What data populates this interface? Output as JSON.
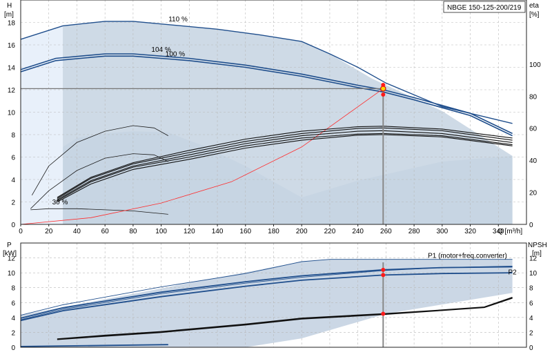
{
  "chart_data": {
    "type": "line",
    "title": "NBGE 150-125-200/219",
    "x": {
      "label": "Q [m³/h]",
      "range": [
        0,
        360
      ],
      "ticks": [
        0,
        20,
        40,
        60,
        80,
        100,
        120,
        140,
        160,
        180,
        200,
        220,
        240,
        260,
        280,
        300,
        320,
        340
      ]
    },
    "duty_point": {
      "Q": 258,
      "H": 12.1,
      "eta": [
        87,
        81
      ],
      "P": [
        10.4,
        9.7
      ],
      "NPSH": 4.5
    },
    "top": {
      "y_left": {
        "label": "H",
        "unit": "[m]",
        "range": [
          0,
          20
        ],
        "ticks": [
          0,
          2,
          4,
          6,
          8,
          10,
          12,
          14,
          16,
          18
        ]
      },
      "y_right": {
        "label": "eta",
        "unit": "[%]",
        "range": [
          0,
          140
        ],
        "ticks": [
          0,
          20,
          40,
          60,
          80,
          100
        ]
      },
      "curve_labels": [
        {
          "text": "110 %",
          "Q": 112,
          "H": 18.1
        },
        {
          "text": "104 %",
          "Q": 100,
          "H": 15.4
        },
        {
          "text": "100 %",
          "Q": 110,
          "H": 15.0
        },
        {
          "text": "30 %",
          "Q": 28,
          "H": 1.8
        }
      ],
      "envelope": [
        [
          0,
          16.5
        ],
        [
          30,
          17.7
        ],
        [
          60,
          18.1
        ],
        [
          80,
          18.1
        ],
        [
          140,
          17.4
        ],
        [
          170,
          16.9
        ],
        [
          200,
          16.3
        ],
        [
          220,
          15.2
        ],
        [
          250,
          13.0
        ],
        [
          300,
          10.1
        ],
        [
          350,
          6.1
        ],
        [
          350,
          0
        ],
        [
          0,
          0
        ]
      ],
      "series": [
        {
          "style": "max",
          "points": [
            [
              0,
              16.5
            ],
            [
              30,
              17.7
            ],
            [
              60,
              18.1
            ],
            [
              80,
              18.1
            ],
            [
              140,
              17.4
            ],
            [
              170,
              16.9
            ],
            [
              200,
              16.3
            ],
            [
              220,
              15.2
            ],
            [
              240,
              14.0
            ],
            [
              260,
              12.6
            ],
            [
              300,
              10.5
            ],
            [
              350,
              9.0
            ]
          ]
        },
        {
          "style": "head",
          "points": [
            [
              0,
              13.8
            ],
            [
              25,
              14.8
            ],
            [
              60,
              15.2
            ],
            [
              80,
              15.2
            ],
            [
              120,
              14.8
            ],
            [
              160,
              14.2
            ],
            [
              200,
              13.4
            ],
            [
              240,
              12.4
            ],
            [
              258,
              12.0
            ],
            [
              280,
              11.3
            ],
            [
              320,
              9.9
            ],
            [
              350,
              8.1
            ]
          ]
        },
        {
          "style": "head",
          "points": [
            [
              0,
              13.6
            ],
            [
              25,
              14.6
            ],
            [
              60,
              15.0
            ],
            [
              80,
              15.0
            ],
            [
              120,
              14.6
            ],
            [
              160,
              14.0
            ],
            [
              200,
              13.2
            ],
            [
              240,
              12.2
            ],
            [
              258,
              11.8
            ],
            [
              280,
              11.1
            ],
            [
              320,
              9.7
            ],
            [
              350,
              7.9
            ]
          ]
        },
        {
          "style": "thin",
          "points": [
            [
              7,
              1.3
            ],
            [
              20,
              1.4
            ],
            [
              40,
              1.4
            ],
            [
              60,
              1.3
            ],
            [
              80,
              1.2
            ],
            [
              105,
              0.9
            ]
          ]
        },
        {
          "style": "thin",
          "points": [
            [
              8,
              2.6
            ],
            [
              20,
              5.2
            ],
            [
              40,
              7.3
            ],
            [
              60,
              8.3
            ],
            [
              80,
              8.8
            ],
            [
              95,
              8.6
            ],
            [
              105,
              7.9
            ]
          ]
        },
        {
          "style": "thin",
          "points": [
            [
              7,
              1.4
            ],
            [
              20,
              3.0
            ],
            [
              40,
              4.8
            ],
            [
              60,
              5.9
            ],
            [
              80,
              6.3
            ],
            [
              95,
              6.2
            ],
            [
              105,
              5.6
            ]
          ]
        },
        {
          "style": "thin-red",
          "points": [
            [
              0,
              0
            ],
            [
              50,
              0.6
            ],
            [
              100,
              1.9
            ],
            [
              150,
              3.8
            ],
            [
              200,
              6.9
            ],
            [
              258,
              12.1
            ]
          ]
        }
      ],
      "eta_series": [
        {
          "points": [
            [
              26,
              2.4
            ],
            [
              50,
              4.2
            ],
            [
              80,
              5.5
            ],
            [
              120,
              6.6
            ],
            [
              160,
              7.6
            ],
            [
              200,
              8.3
            ],
            [
              240,
              8.7
            ],
            [
              258,
              8.75
            ],
            [
              300,
              8.5
            ],
            [
              350,
              7.7
            ]
          ]
        },
        {
          "points": [
            [
              26,
              2.3
            ],
            [
              50,
              4.1
            ],
            [
              80,
              5.4
            ],
            [
              120,
              6.4
            ],
            [
              160,
              7.4
            ],
            [
              200,
              8.1
            ],
            [
              240,
              8.55
            ],
            [
              258,
              8.6
            ],
            [
              300,
              8.35
            ],
            [
              350,
              7.5
            ]
          ]
        },
        {
          "points": [
            [
              26,
              2.2
            ],
            [
              50,
              3.9
            ],
            [
              80,
              5.2
            ],
            [
              120,
              6.2
            ],
            [
              160,
              7.2
            ],
            [
              200,
              7.9
            ],
            [
              240,
              8.3
            ],
            [
              258,
              8.35
            ],
            [
              300,
              8.1
            ],
            [
              350,
              7.3
            ]
          ]
        },
        {
          "points": [
            [
              26,
              2.1
            ],
            [
              50,
              3.8
            ],
            [
              80,
              5.1
            ],
            [
              120,
              6.0
            ],
            [
              160,
              7.0
            ],
            [
              200,
              7.7
            ],
            [
              240,
              8.05
            ],
            [
              258,
              8.1
            ],
            [
              300,
              7.9
            ],
            [
              350,
              7.1
            ]
          ]
        },
        {
          "points": [
            [
              26,
              2.0
            ],
            [
              50,
              3.6
            ],
            [
              80,
              4.9
            ],
            [
              120,
              5.8
            ],
            [
              160,
              6.8
            ],
            [
              200,
              7.5
            ],
            [
              240,
              7.95
            ],
            [
              258,
              8.0
            ],
            [
              300,
              7.8
            ],
            [
              350,
              7.0
            ]
          ]
        }
      ],
      "eta_band": [
        [
          8,
          0
        ],
        [
          10,
          1.7
        ],
        [
          25,
          6.5
        ],
        [
          40,
          7.7
        ],
        [
          60,
          8.1
        ],
        [
          80,
          8.3
        ],
        [
          105,
          8.2
        ],
        [
          130,
          7.0
        ],
        [
          160,
          5.2
        ],
        [
          200,
          2.4
        ],
        [
          240,
          3.9
        ],
        [
          300,
          5.6
        ],
        [
          350,
          6.1
        ],
        [
          350,
          0
        ]
      ]
    },
    "bottom": {
      "y_left": {
        "label": "P",
        "unit": "[kW]",
        "range": [
          0,
          14
        ],
        "ticks": [
          0,
          2,
          4,
          6,
          8,
          10,
          12
        ]
      },
      "y_right": {
        "label": "NPSH",
        "unit": "[m]",
        "range": [
          0,
          14
        ],
        "ticks": [
          0,
          2,
          4,
          6,
          8,
          10,
          12
        ]
      },
      "curve_labels": [
        {
          "text": "P1 (motor+freq.converter)",
          "Q": 318,
          "P": 12.0
        },
        {
          "text": "P2",
          "Q": 347,
          "P": 9.8
        }
      ],
      "power_band": [
        [
          0,
          4.3
        ],
        [
          200,
          11.5
        ],
        [
          220,
          11.8
        ],
        [
          350,
          11.8
        ],
        [
          350,
          7.3
        ],
        [
          260,
          4.5
        ],
        [
          200,
          1.2
        ],
        [
          160,
          0
        ],
        [
          0,
          0
        ]
      ],
      "series": [
        {
          "style": "thin-blue",
          "points": [
            [
              0,
              4.3
            ],
            [
              30,
              5.7
            ],
            [
              100,
              8.1
            ],
            [
              160,
              9.9
            ],
            [
              200,
              11.5
            ],
            [
              220,
              11.8
            ],
            [
              350,
              11.8
            ]
          ]
        },
        {
          "style": "thin-blue",
          "points": [
            [
              0,
              3.7
            ],
            [
              30,
              5.1
            ],
            [
              100,
              7.2
            ],
            [
              160,
              8.6
            ],
            [
              200,
              9.4
            ],
            [
              258,
              10.3
            ],
            [
              300,
              10.7
            ],
            [
              350,
              10.9
            ]
          ]
        },
        {
          "style": "blue",
          "points": [
            [
              0,
              3.9
            ],
            [
              30,
              5.3
            ],
            [
              100,
              7.4
            ],
            [
              160,
              8.8
            ],
            [
              200,
              9.6
            ],
            [
              258,
              10.4
            ],
            [
              300,
              10.7
            ],
            [
              350,
              10.8
            ]
          ]
        },
        {
          "style": "blue",
          "points": [
            [
              0,
              3.6
            ],
            [
              30,
              4.9
            ],
            [
              100,
              6.8
            ],
            [
              160,
              8.2
            ],
            [
              200,
              9.0
            ],
            [
              258,
              9.7
            ],
            [
              300,
              9.9
            ],
            [
              350,
              10.0
            ]
          ]
        },
        {
          "style": "black",
          "points": [
            [
              26,
              1.1
            ],
            [
              60,
              1.6
            ],
            [
              100,
              2.1
            ],
            [
              160,
              3.1
            ],
            [
              200,
              3.9
            ],
            [
              258,
              4.5
            ],
            [
              300,
              5.0
            ],
            [
              330,
              5.4
            ],
            [
              350,
              6.7
            ]
          ]
        },
        {
          "style": "black",
          "points": [
            [
              26,
              1.05
            ],
            [
              60,
              1.5
            ],
            [
              100,
              2.0
            ],
            [
              160,
              3.0
            ],
            [
              200,
              3.8
            ],
            [
              258,
              4.4
            ],
            [
              300,
              4.95
            ],
            [
              330,
              5.35
            ],
            [
              350,
              6.6
            ]
          ]
        },
        {
          "style": "blue",
          "points": [
            [
              0,
              0.1
            ],
            [
              105,
              0.35
            ]
          ]
        }
      ]
    }
  }
}
